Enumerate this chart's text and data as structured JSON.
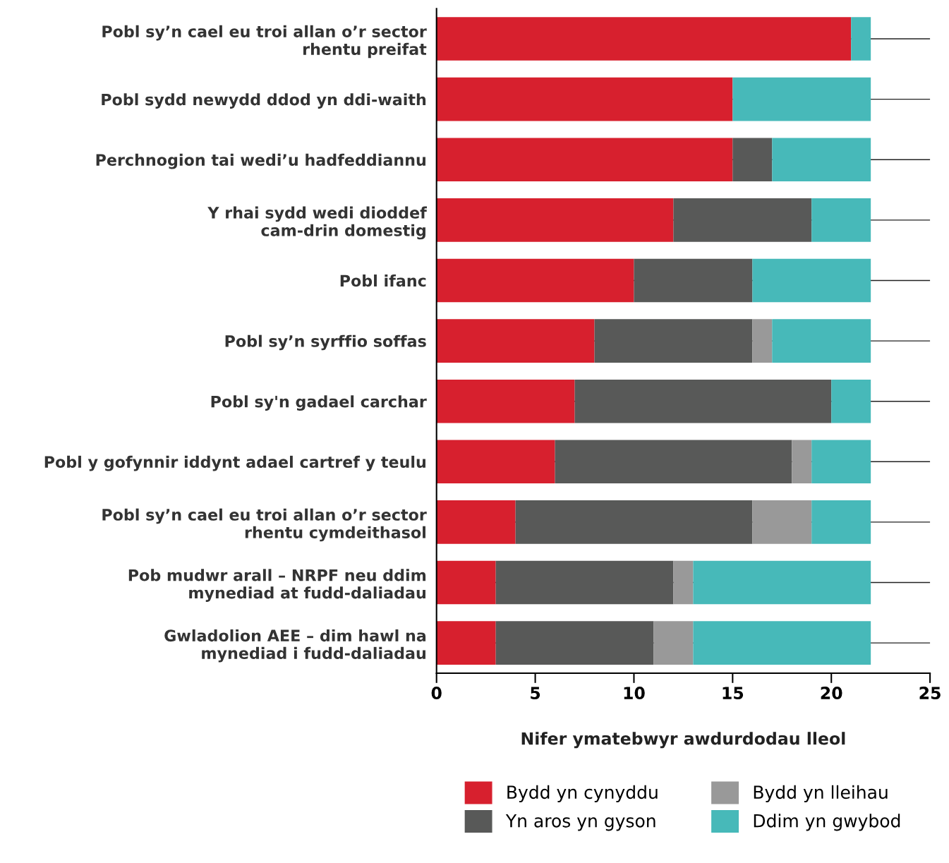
{
  "chart_data": {
    "type": "bar",
    "orientation": "horizontal",
    "stacked": true,
    "xlabel": "Nifer ymatebwyr awdurdodau lleol",
    "categories": [
      "Pobl sy’n cael eu troi allan o’r sector\nrhentu preifat",
      "Pobl sydd newydd ddod yn ddi-waith",
      "Perchnogion tai wedi’u hadfeddiannu",
      "Y rhai sydd wedi dioddef\ncam-drin domestig",
      "Pobl ifanc",
      "Pobl sy’n syrffio soffas",
      "Pobl sy'n gadael carchar",
      "Pobl y gofynnir iddynt adael cartref y teulu",
      "Pobl sy’n cael eu troi allan o’r sector\nrhentu cymdeithasol",
      "Pob mudwr arall – NRPF neu ddim\nmynediad at fudd-daliadau",
      "Gwladolion AEE – dim hawl na\nmynediad i fudd-daliadau"
    ],
    "series": [
      {
        "name": "Bydd yn cynyddu",
        "color": "#d7202e",
        "values": [
          21,
          15,
          15,
          12,
          10,
          8,
          7,
          6,
          4,
          3,
          3
        ]
      },
      {
        "name": "Yn aros yn gyson",
        "color": "#585958",
        "values": [
          0,
          0,
          2,
          7,
          6,
          8,
          13,
          12,
          12,
          9,
          8
        ]
      },
      {
        "name": "Bydd yn lleihau",
        "color": "#999999",
        "values": [
          0,
          0,
          0,
          0,
          0,
          1,
          0,
          1,
          3,
          1,
          2
        ]
      },
      {
        "name": "Ddim yn gwybod",
        "color": "#47b9b9",
        "values": [
          1,
          7,
          5,
          3,
          6,
          5,
          2,
          3,
          3,
          9,
          9
        ]
      }
    ],
    "xlim": [
      0,
      25
    ],
    "xticks": [
      0,
      5,
      10,
      15,
      20,
      25
    ],
    "grid": "y",
    "legend": "bottom"
  }
}
